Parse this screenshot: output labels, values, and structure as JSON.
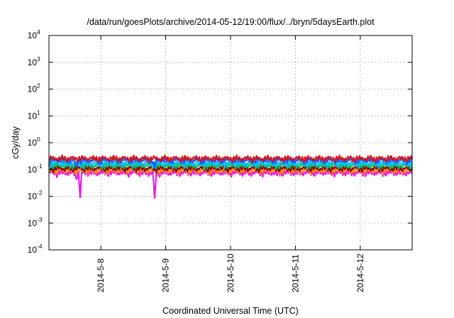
{
  "chart_data": {
    "type": "line",
    "title": "/data/run/goesPlots/archive/2014-05-12/19:00/flux/../bryn/5daysEarth.plot",
    "xlabel": "Coordinated Universal Time (UTC)",
    "ylabel": "cGy/day",
    "yscale": "log",
    "ylim": [
      0.0001,
      10000
    ],
    "xlim": [
      7.2,
      12.8
    ],
    "x_unit": "day of May 2014",
    "x_ticks": [
      {
        "value": 8,
        "label": "2014-5-8"
      },
      {
        "value": 9,
        "label": "2014-5-9"
      },
      {
        "value": 10,
        "label": "2014-5-10"
      },
      {
        "value": 11,
        "label": "2014-5-11"
      },
      {
        "value": 12,
        "label": "2014-5-12"
      }
    ],
    "y_ticks": [
      {
        "value": 0.0001,
        "base": "10",
        "exp": "-4"
      },
      {
        "value": 0.001,
        "base": "10",
        "exp": "-3"
      },
      {
        "value": 0.01,
        "base": "10",
        "exp": "-2"
      },
      {
        "value": 0.1,
        "base": "10",
        "exp": "-1"
      },
      {
        "value": 1,
        "base": "10",
        "exp": "0"
      },
      {
        "value": 10,
        "base": "10",
        "exp": "1"
      },
      {
        "value": 100,
        "base": "10",
        "exp": "2"
      },
      {
        "value": 1000,
        "base": "10",
        "exp": "3"
      },
      {
        "value": 10000,
        "base": "10",
        "exp": "4"
      }
    ],
    "grid": true,
    "legend": "none",
    "series": [
      {
        "color": "#ff00ff",
        "baseline": 0.075,
        "dips": [
          {
            "x": 7.62,
            "y": 0.04
          },
          {
            "x": 7.68,
            "y": 0.009
          },
          {
            "x": 8.83,
            "y": 0.006
          },
          {
            "x": 10.72,
            "y": 0.06
          }
        ]
      },
      {
        "color": "#ff8c00",
        "baseline": 0.09,
        "dips": []
      },
      {
        "color": "#8b0000",
        "baseline": 0.11,
        "dips": []
      },
      {
        "color": "#00c060",
        "baseline": 0.14,
        "dips": []
      },
      {
        "color": "#00bfff",
        "baseline": 0.17,
        "dips": []
      },
      {
        "color": "#1e50ff",
        "baseline": 0.22,
        "dips": [
          {
            "x": 7.62,
            "y": 0.1
          },
          {
            "x": 8.83,
            "y": 0.1
          }
        ]
      },
      {
        "color": "#e01010",
        "baseline": 0.26,
        "dips": []
      }
    ]
  }
}
